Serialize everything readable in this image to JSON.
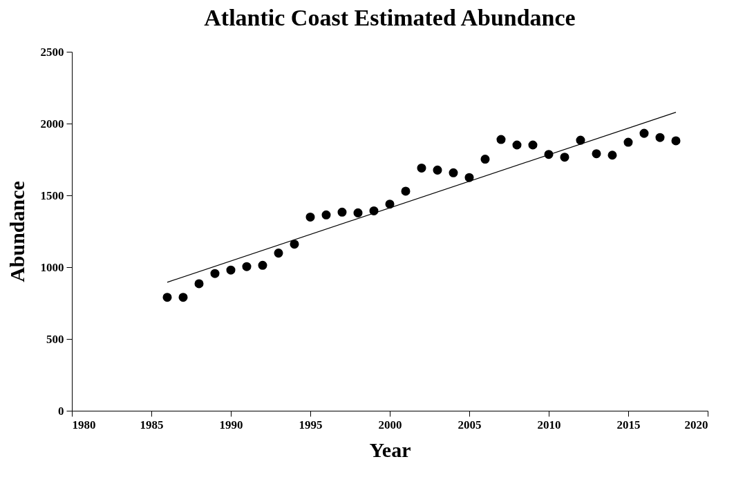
{
  "chart_data": {
    "type": "scatter",
    "title": "Atlantic Coast Estimated Abundance",
    "xlabel": "Year",
    "ylabel": "Abundance",
    "xlim": [
      1980,
      2020
    ],
    "xticks": [
      1980,
      1985,
      1990,
      1995,
      2000,
      2005,
      2010,
      2015,
      2020
    ],
    "ylim": [
      0,
      2500
    ],
    "yticks": [
      0,
      500,
      1000,
      1500,
      2000,
      2500
    ],
    "grid": false,
    "marker": "circle",
    "line_style": "solid",
    "series": [
      {
        "color": "#000000",
        "x": [
          1986,
          1987,
          1988,
          1989,
          1990,
          1991,
          1992,
          1993,
          1994,
          1995,
          1996,
          1997,
          1998,
          1999,
          2000,
          2001,
          2002,
          2003,
          2004,
          2005,
          2006,
          2007,
          2008,
          2009,
          2010,
          2011,
          2012,
          2013,
          2014,
          2015,
          2016,
          2017,
          2018
        ],
        "values": [
          790,
          790,
          885,
          956,
          980,
          1004,
          1013,
          1098,
          1160,
          1349,
          1364,
          1383,
          1378,
          1392,
          1439,
          1529,
          1690,
          1676,
          1657,
          1624,
          1752,
          1889,
          1851,
          1851,
          1785,
          1766,
          1884,
          1790,
          1780,
          1870,
          1932,
          1903,
          1880
        ]
      },
      {
        "type": "line",
        "marker": "none",
        "color": "#000000",
        "x": [
          1986,
          2018
        ],
        "values": [
          895,
          2079
        ]
      }
    ]
  }
}
